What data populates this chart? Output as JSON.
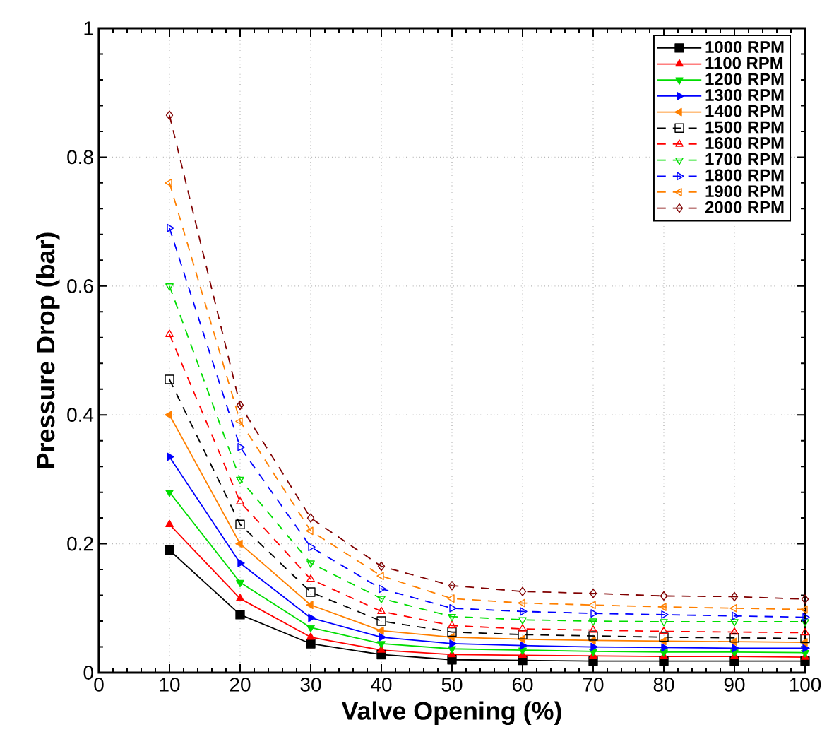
{
  "chart_data": {
    "type": "line",
    "xlabel": "Valve Opening (%)",
    "ylabel": "Pressure Drop (bar)",
    "x": [
      10,
      20,
      30,
      40,
      50,
      60,
      70,
      80,
      90,
      100
    ],
    "xlim": [
      0,
      100
    ],
    "xticks": [
      0,
      10,
      20,
      30,
      40,
      50,
      60,
      70,
      80,
      90,
      100
    ],
    "ylim": [
      0,
      1
    ],
    "yticks": [
      0,
      0.2,
      0.4,
      0.6,
      0.8,
      1
    ],
    "grid": true,
    "legend": "top right",
    "series": [
      {
        "name": "1000 RPM",
        "color": "#000000",
        "marker": "square",
        "line_style": "solid",
        "values": [
          0.19,
          0.09,
          0.045,
          0.028,
          0.02,
          0.019,
          0.018,
          0.018,
          0.018,
          0.018
        ]
      },
      {
        "name": "1100 RPM",
        "color": "#ff0000",
        "marker": "triangle",
        "line_style": "solid",
        "values": [
          0.23,
          0.115,
          0.055,
          0.035,
          0.028,
          0.027,
          0.026,
          0.025,
          0.025,
          0.024
        ]
      },
      {
        "name": "1200 RPM",
        "color": "#00dd00",
        "marker": "triangle-down",
        "line_style": "solid",
        "values": [
          0.28,
          0.14,
          0.07,
          0.045,
          0.037,
          0.035,
          0.033,
          0.032,
          0.032,
          0.031
        ]
      },
      {
        "name": "1300 RPM",
        "color": "#0000ff",
        "marker": "triangle-right",
        "line_style": "solid",
        "values": [
          0.335,
          0.17,
          0.085,
          0.055,
          0.045,
          0.042,
          0.04,
          0.039,
          0.038,
          0.038
        ]
      },
      {
        "name": "1400 RPM",
        "color": "#ff8000",
        "marker": "triangle-left",
        "line_style": "solid",
        "values": [
          0.4,
          0.2,
          0.105,
          0.065,
          0.055,
          0.052,
          0.05,
          0.049,
          0.048,
          0.047
        ]
      },
      {
        "name": "1500 RPM",
        "color": "#000000",
        "marker": "square-open",
        "line_style": "dashed",
        "values": [
          0.455,
          0.23,
          0.125,
          0.08,
          0.063,
          0.059,
          0.057,
          0.055,
          0.054,
          0.053
        ]
      },
      {
        "name": "1600 RPM",
        "color": "#ff0000",
        "marker": "triangle-open",
        "line_style": "dashed",
        "values": [
          0.525,
          0.265,
          0.145,
          0.095,
          0.073,
          0.068,
          0.066,
          0.064,
          0.063,
          0.062
        ]
      },
      {
        "name": "1700 RPM",
        "color": "#00dd00",
        "marker": "triangle-down-open",
        "line_style": "dashed",
        "values": [
          0.6,
          0.3,
          0.17,
          0.115,
          0.087,
          0.082,
          0.08,
          0.079,
          0.079,
          0.079
        ]
      },
      {
        "name": "1800 RPM",
        "color": "#0000ff",
        "marker": "triangle-right-open",
        "line_style": "dashed",
        "values": [
          0.69,
          0.35,
          0.195,
          0.13,
          0.1,
          0.095,
          0.092,
          0.09,
          0.088,
          0.086
        ]
      },
      {
        "name": "1900 RPM",
        "color": "#ff8000",
        "marker": "triangle-left-open",
        "line_style": "dashed",
        "values": [
          0.76,
          0.39,
          0.22,
          0.15,
          0.115,
          0.108,
          0.105,
          0.102,
          0.1,
          0.098
        ]
      },
      {
        "name": "2000 RPM",
        "color": "#800000",
        "marker": "diamond-open",
        "line_style": "dashed",
        "values": [
          0.865,
          0.415,
          0.24,
          0.165,
          0.135,
          0.126,
          0.123,
          0.119,
          0.118,
          0.114
        ]
      }
    ]
  }
}
